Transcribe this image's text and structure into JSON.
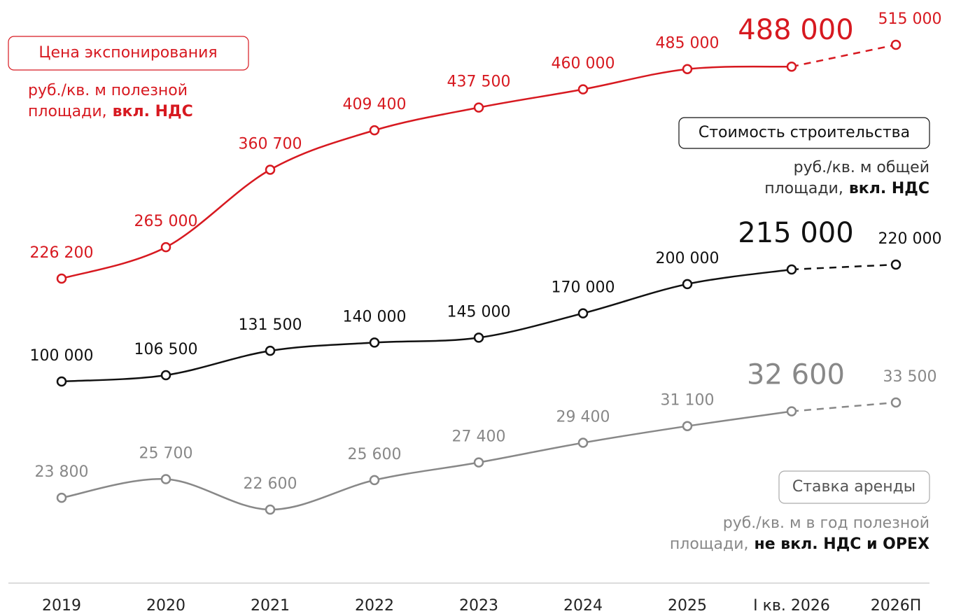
{
  "chart_data": {
    "type": "line",
    "categories": [
      "2019",
      "2020",
      "2021",
      "2022",
      "2023",
      "2024",
      "2025",
      "I кв. 2026",
      "2026П"
    ],
    "series": [
      {
        "name": "Цена экспонирования",
        "color": "#d71920",
        "values": [
          226200,
          265000,
          360700,
          409400,
          437500,
          460000,
          485000,
          488000,
          515000
        ],
        "value_labels": [
          "226 200",
          "265 000",
          "360 700",
          "409 400",
          "437 500",
          "460 000",
          "485 000",
          "488 000",
          "515 000"
        ],
        "unit": [
          "руб./кв. м полезной",
          "площади,"
        ],
        "unit_bold": "вкл. НДС"
      },
      {
        "name": "Стоимость строительства",
        "color": "#111111",
        "values": [
          100000,
          106500,
          131500,
          140000,
          145000,
          170000,
          200000,
          215000,
          220000
        ],
        "value_labels": [
          "100 000",
          "106 500",
          "131 500",
          "140 000",
          "145 000",
          "170 000",
          "200 000",
          "215 000",
          "220 000"
        ],
        "unit": [
          "руб./кв. м общей",
          "площади,"
        ],
        "unit_bold": "вкл. НДС"
      },
      {
        "name": "Ставка аренды",
        "color": "#888888",
        "values": [
          23800,
          25700,
          22600,
          25600,
          27400,
          29400,
          31100,
          32600,
          33500
        ],
        "value_labels": [
          "23 800",
          "25 700",
          "22 600",
          "25 600",
          "27 400",
          "29 400",
          "31 100",
          "32 600",
          "33 500"
        ],
        "unit": [
          "руб./кв. м в год полезной",
          "площади,"
        ],
        "unit_bold": "не вкл. НДС и OPEX"
      }
    ]
  }
}
